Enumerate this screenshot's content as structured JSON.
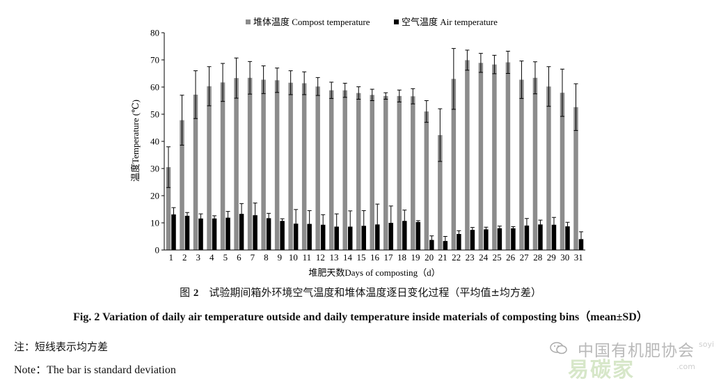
{
  "chart_data": {
    "type": "bar",
    "legend": [
      {
        "label": "堆体温度 Compost temperature",
        "color": "#8c8c8c"
      },
      {
        "label": "空气温度 Air temperature",
        "color": "#000000"
      }
    ],
    "ylabel": "温度Temperature (℃)",
    "xlabel": "堆肥天数Days of composting（d）",
    "ylim": [
      0,
      80
    ],
    "yticks": [
      0,
      10,
      20,
      30,
      40,
      50,
      60,
      70,
      80
    ],
    "categories": [
      "1",
      "2",
      "3",
      "4",
      "5",
      "6",
      "7",
      "8",
      "9",
      "10",
      "11",
      "12",
      "13",
      "14",
      "15",
      "16",
      "17",
      "18",
      "19",
      "20",
      "21",
      "22",
      "23",
      "24",
      "25",
      "26",
      "27",
      "28",
      "29",
      "30",
      "31"
    ],
    "series": [
      {
        "name": "堆体温度 Compost temperature",
        "values": [
          30.5,
          47.8,
          57.2,
          60.3,
          61.7,
          63.3,
          63.4,
          62.7,
          62.5,
          61.6,
          61.4,
          60.2,
          58.8,
          58.8,
          57.8,
          57.1,
          56.7,
          56.7,
          56.6,
          51.0,
          42.3,
          63.0,
          69.9,
          68.9,
          68.3,
          69.1,
          62.7,
          63.4,
          60.2,
          57.9,
          52.6
        ],
        "errors": [
          7.5,
          9.2,
          8.8,
          7.2,
          7.0,
          7.4,
          6.0,
          5.1,
          4.5,
          4.4,
          4.2,
          3.3,
          3.0,
          2.6,
          2.3,
          2.1,
          1.2,
          2.2,
          2.8,
          4.0,
          9.7,
          11.2,
          3.7,
          3.5,
          3.4,
          4.1,
          6.9,
          5.9,
          7.3,
          8.7,
          8.6
        ]
      },
      {
        "name": "空气温度 Air temperature",
        "values": [
          13.1,
          12.6,
          11.6,
          11.6,
          11.9,
          13.3,
          12.8,
          11.7,
          10.7,
          9.7,
          9.6,
          9.3,
          8.6,
          8.6,
          8.9,
          9.4,
          10.0,
          10.7,
          10.3,
          3.7,
          3.3,
          5.9,
          7.4,
          7.6,
          8.0,
          8.0,
          9.0,
          9.4,
          9.3,
          8.7,
          4.0
        ],
        "errors": [
          2.5,
          1.2,
          1.7,
          1.0,
          2.3,
          3.8,
          4.5,
          1.8,
          0.8,
          5.2,
          4.9,
          3.7,
          4.7,
          5.8,
          5.6,
          7.5,
          6.2,
          4.0,
          0.5,
          1.5,
          1.7,
          1.2,
          0.9,
          0.8,
          0.8,
          0.6,
          2.6,
          1.6,
          2.7,
          1.5,
          2.7
        ]
      }
    ]
  },
  "caption_cn_prefix": "图 ",
  "caption_cn_num": "2",
  "caption_cn_text": "　试验期间箱外环境空气温度和堆体温度逐日变化过程（平均值±均方差）",
  "caption_en": "Fig. 2    Variation of daily air temperature outside and daily temperature inside materials of composting bins（mean±SD）",
  "note_cn": "注：短线表示均方差",
  "note_en": "Note：The bar is standard deviation",
  "watermark": {
    "cn": "中国有机肥协会",
    "logo": "易碳家",
    "com": ".com",
    "tail": "soyi"
  }
}
